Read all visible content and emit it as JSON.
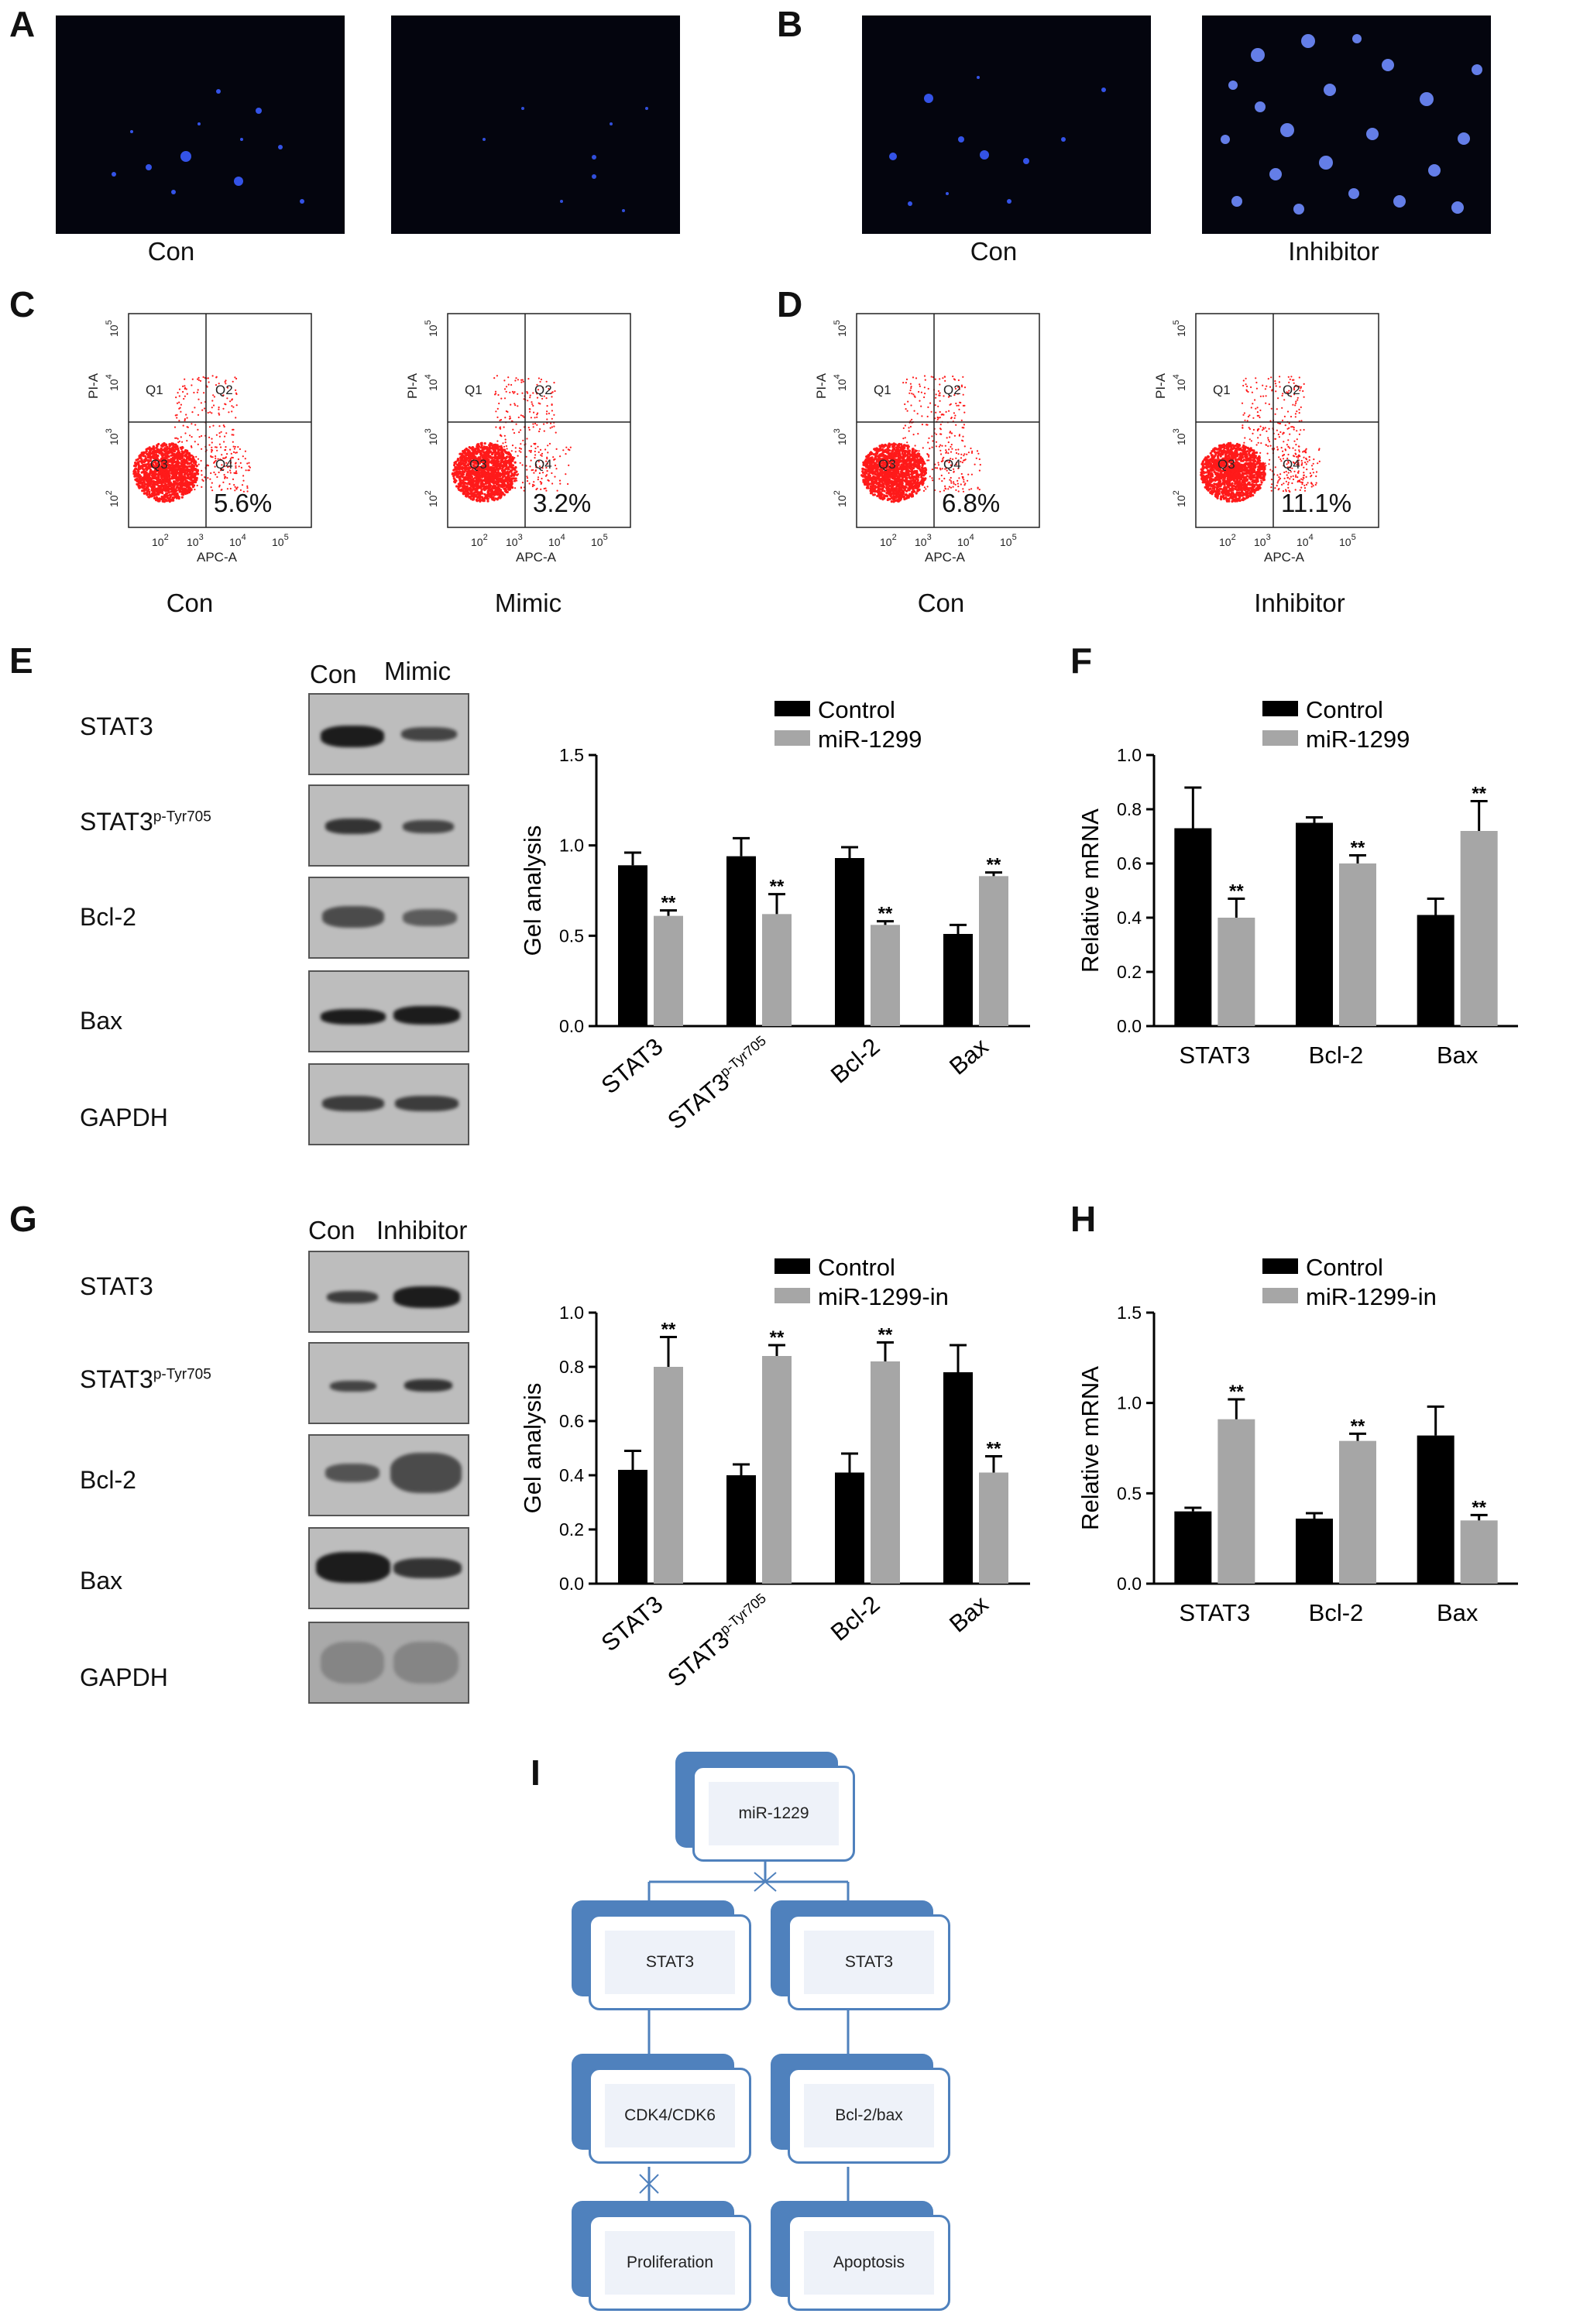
{
  "panels": {
    "A": {
      "letter": "A",
      "images": [
        {
          "caption": "Con"
        },
        {
          "caption": ""
        }
      ]
    },
    "B": {
      "letter": "B",
      "images": [
        {
          "caption": "Con"
        },
        {
          "caption": "Inhibitor"
        }
      ]
    },
    "C": {
      "letter": "C",
      "plots": [
        {
          "caption": "Con",
          "percent": "5.6%"
        },
        {
          "caption": "Mimic",
          "percent": "3.2%"
        }
      ]
    },
    "D": {
      "letter": "D",
      "plots": [
        {
          "caption": "Con",
          "percent": "6.8%"
        },
        {
          "caption": "Inhibitor",
          "percent": "11.1%"
        }
      ]
    },
    "flow_labels": {
      "q1": "Q1",
      "q2": "Q2",
      "q3": "Q3",
      "q4": "Q4",
      "xlabel": "APC-A",
      "ylabel": "PI-A",
      "ticks": [
        "10",
        "10",
        "10",
        "10"
      ],
      "exps": [
        "2",
        "3",
        "4",
        "5"
      ]
    },
    "E": {
      "letter": "E",
      "lanes": [
        "Con",
        "Mimic"
      ],
      "rows": [
        "STAT3",
        "STAT3",
        "Bcl-2",
        "Bax",
        "GAPDH"
      ],
      "sup": "p-Tyr705"
    },
    "G": {
      "letter": "G",
      "lanes": [
        "Con",
        "Inhibitor"
      ],
      "rows": [
        "STAT3",
        "STAT3",
        "Bcl-2",
        "Bax",
        "GAPDH"
      ],
      "sup": "p-Tyr705"
    },
    "F": {
      "letter": "F"
    },
    "H": {
      "letter": "H"
    },
    "I": {
      "letter": "I",
      "nodes": {
        "top": "miR-1229",
        "l1": "STAT3",
        "r1": "STAT3",
        "l2": "CDK4/CDK6",
        "r2": "Bcl-2/bax",
        "l3": "Proliferation",
        "r3": "Apoptosis"
      }
    }
  },
  "colors": {
    "control": "#000000",
    "treated": "#a6a6a6",
    "flow": "#ff1a1a",
    "micro_bg": "#04050e",
    "node": "#4f81bd"
  },
  "chart_data": [
    {
      "id": "E_gel",
      "type": "bar",
      "ylabel": "Gel analysis",
      "ylim": [
        0,
        1.5
      ],
      "yticks": [
        "0.0",
        "0.5",
        "1.0",
        "1.5"
      ],
      "categories": [
        "STAT3",
        "STAT3",
        "Bcl-2",
        "Bax"
      ],
      "cat_sup": [
        "",
        "p-Tyr705",
        "",
        ""
      ],
      "rotate": true,
      "series": [
        {
          "name": "Control",
          "values": [
            0.89,
            0.94,
            0.93,
            0.51
          ],
          "err": [
            0.07,
            0.1,
            0.06,
            0.05
          ]
        },
        {
          "name": "miR-1299",
          "values": [
            0.61,
            0.62,
            0.56,
            0.83
          ],
          "err": [
            0.03,
            0.11,
            0.02,
            0.02
          ]
        }
      ],
      "sig": [
        [
          false,
          false,
          false,
          false
        ],
        [
          true,
          true,
          true,
          true
        ]
      ]
    },
    {
      "id": "F_mrna",
      "type": "bar",
      "ylabel": "Relative mRNA",
      "ylim": [
        0,
        1.0
      ],
      "yticks": [
        "0.0",
        "0.2",
        "0.4",
        "0.6",
        "0.8",
        "1.0"
      ],
      "categories": [
        "STAT3",
        "Bcl-2",
        "Bax"
      ],
      "cat_sup": [
        "",
        "",
        ""
      ],
      "rotate": false,
      "series": [
        {
          "name": "Control",
          "values": [
            0.73,
            0.75,
            0.41
          ],
          "err": [
            0.15,
            0.02,
            0.06
          ]
        },
        {
          "name": "miR-1299",
          "values": [
            0.4,
            0.6,
            0.72
          ],
          "err": [
            0.07,
            0.03,
            0.11
          ]
        }
      ],
      "sig": [
        [
          false,
          false,
          false
        ],
        [
          true,
          true,
          true
        ]
      ]
    },
    {
      "id": "G_gel",
      "type": "bar",
      "ylabel": "Gel analysis",
      "ylim": [
        0,
        1.0
      ],
      "yticks": [
        "0.0",
        "0.2",
        "0.4",
        "0.6",
        "0.8",
        "1.0"
      ],
      "categories": [
        "STAT3",
        "STAT3",
        "Bcl-2",
        "Bax"
      ],
      "cat_sup": [
        "",
        "p-Tyr705",
        "",
        ""
      ],
      "rotate": true,
      "series": [
        {
          "name": "Control",
          "values": [
            0.42,
            0.4,
            0.41,
            0.78
          ],
          "err": [
            0.07,
            0.04,
            0.07,
            0.1
          ]
        },
        {
          "name": "miR-1299-in",
          "values": [
            0.8,
            0.84,
            0.82,
            0.41
          ],
          "err": [
            0.11,
            0.04,
            0.07,
            0.06
          ]
        }
      ],
      "sig": [
        [
          false,
          false,
          false,
          false
        ],
        [
          true,
          true,
          true,
          true
        ]
      ]
    },
    {
      "id": "H_mrna",
      "type": "bar",
      "ylabel": "Relative mRNA",
      "ylim": [
        0,
        1.5
      ],
      "yticks": [
        "0.0",
        "0.5",
        "1.0",
        "1.5"
      ],
      "categories": [
        "STAT3",
        "Bcl-2",
        "Bax"
      ],
      "cat_sup": [
        "",
        "",
        ""
      ],
      "rotate": false,
      "series": [
        {
          "name": "Control",
          "values": [
            0.4,
            0.36,
            0.82
          ],
          "err": [
            0.02,
            0.03,
            0.16
          ]
        },
        {
          "name": "miR-1299-in",
          "values": [
            0.91,
            0.79,
            0.35
          ],
          "err": [
            0.11,
            0.04,
            0.03
          ]
        }
      ],
      "sig": [
        [
          false,
          false,
          false
        ],
        [
          true,
          true,
          true
        ]
      ]
    }
  ]
}
